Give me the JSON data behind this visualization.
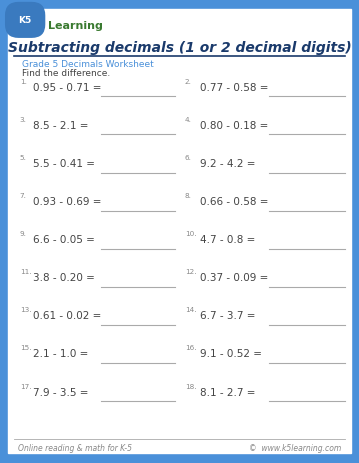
{
  "title": "Subtracting decimals (1 or 2 decimal digits)",
  "grade_label": "Grade 5 Decimals Worksheet",
  "instruction": "Find the difference.",
  "problems": [
    [
      "1.",
      "0.95 - 0.71 =",
      "2.",
      "0.77 - 0.58 ="
    ],
    [
      "3.",
      "8.5 - 2.1 =",
      "4.",
      "0.80 - 0.18 ="
    ],
    [
      "5.",
      "5.5 - 0.41 =",
      "6.",
      "9.2 - 4.2 ="
    ],
    [
      "7.",
      "0.93 - 0.69 =",
      "8.",
      "0.66 - 0.58 ="
    ],
    [
      "9.",
      "6.6 - 0.05 =",
      "10.",
      "4.7 - 0.8 ="
    ],
    [
      "11.",
      "3.8 - 0.20 =",
      "12.",
      "0.37 - 0.09 ="
    ],
    [
      "13.",
      "0.61 - 0.02 =",
      "14.",
      "6.7 - 3.7 ="
    ],
    [
      "15.",
      "2.1 - 1.0 =",
      "16.",
      "9.1 - 0.52 ="
    ],
    [
      "17.",
      "7.9 - 3.5 =",
      "18.",
      "8.1 - 2.7 ="
    ]
  ],
  "footer_left": "Online reading & math for K-5",
  "footer_right": "©  www.k5learning.com",
  "border_color": "#4a90d9",
  "title_color": "#1a3a6b",
  "grade_color": "#4a90d9",
  "problem_color": "#444444",
  "number_color": "#888888",
  "line_color": "#aaaaaa",
  "footer_color": "#888888",
  "bg_color": "#ffffff"
}
